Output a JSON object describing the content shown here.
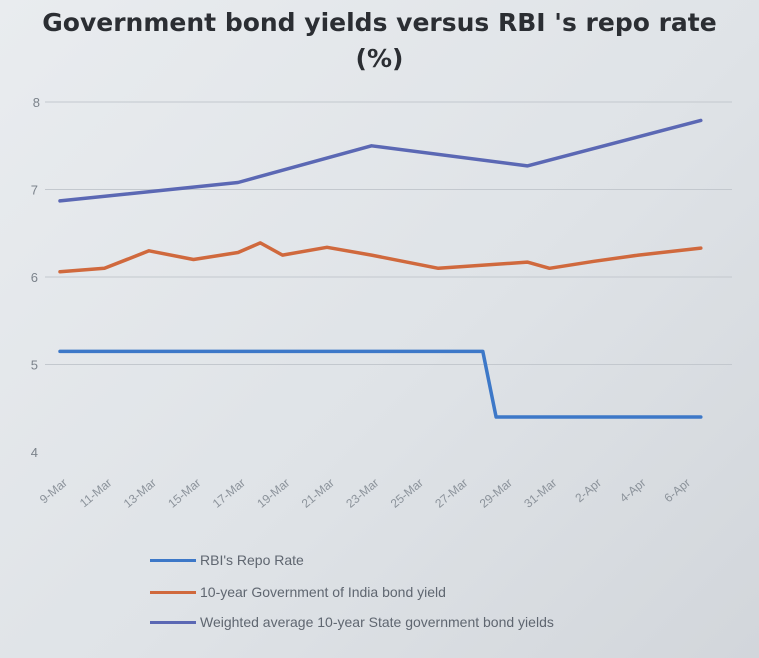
{
  "chart_data": {
    "type": "line",
    "title": "Government bond yields versus RBI 's repo rate",
    "subtitle": "(%)",
    "categories": [
      "9-Mar",
      "11-Mar",
      "13-Mar",
      "15-Mar",
      "17-Mar",
      "19-Mar",
      "21-Mar",
      "23-Mar",
      "25-Mar",
      "27-Mar",
      "29-Mar",
      "31-Mar",
      "2-Apr",
      "4-Apr",
      "6-Apr"
    ],
    "y_ticks": [
      4,
      5,
      6,
      7,
      8
    ],
    "ylim": [
      4,
      8
    ],
    "grid": "horizontal",
    "legend_position": "bottom",
    "series": [
      {
        "name": "RBI's Repo Rate",
        "color": "#3d78c8",
        "values": [
          5.15,
          5.15,
          5.15,
          5.15,
          5.15,
          5.15,
          5.15,
          5.15,
          5.15,
          5.15,
          4.4,
          4.4,
          4.4,
          4.4,
          4.4,
          4.4
        ],
        "x": [
          0,
          1,
          2,
          3,
          4,
          5,
          6,
          7,
          8,
          9.5,
          9.8,
          10.5,
          11.5,
          12.5,
          13.5,
          14.4
        ]
      },
      {
        "name": "10-year Government of India bond yield",
        "color": "#d0693d",
        "values": [
          6.06,
          6.1,
          6.3,
          6.2,
          6.28,
          6.39,
          6.25,
          6.34,
          6.25,
          6.1,
          6.17,
          6.1,
          6.18,
          6.25,
          6.33
        ],
        "x": [
          0,
          1,
          2,
          3,
          4,
          4.5,
          5,
          6,
          7,
          8.5,
          10.5,
          11,
          12,
          13,
          14.4
        ]
      },
      {
        "name": "Weighted average 10-year State government bond yields",
        "color": "#5b68b4",
        "values": [
          6.87,
          7.08,
          7.5,
          7.27,
          7.79
        ],
        "x": [
          0,
          4,
          7,
          10.5,
          14.4
        ]
      }
    ]
  }
}
